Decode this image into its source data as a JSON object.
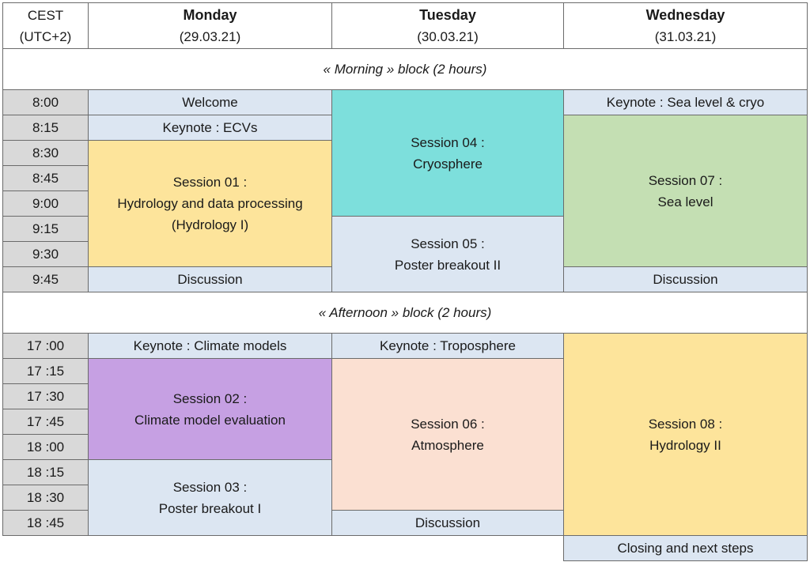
{
  "header": {
    "tz_line1": "CEST",
    "tz_line2": "(UTC+2)",
    "days": [
      {
        "name": "Monday",
        "date": "(29.03.21)"
      },
      {
        "name": "Tuesday",
        "date": "(30.03.21)"
      },
      {
        "name": "Wednesday",
        "date": "(31.03.21)"
      }
    ]
  },
  "blocks": {
    "morning": "« Morning » block (2 hours)",
    "afternoon": "« Afternoon » block (2 hours)"
  },
  "times": {
    "morning": [
      "8:00",
      "8:15",
      "8:30",
      "8:45",
      "9:00",
      "9:15",
      "9:30",
      "9:45"
    ],
    "afternoon": [
      "17 :00",
      "17 :15",
      "17 :30",
      "17 :45",
      "18 :00",
      "18 :15",
      "18 :30",
      "18 :45"
    ]
  },
  "morning": {
    "monday": {
      "welcome": "Welcome",
      "keynote": "Keynote : ECVs",
      "session": [
        "Session 01 :",
        "Hydrology and data processing",
        "(Hydrology I)"
      ],
      "discussion": "Discussion"
    },
    "tuesday": {
      "session_a": [
        "Session 04 :",
        "Cryosphere"
      ],
      "session_b": [
        "Session 05 :",
        "Poster breakout II"
      ]
    },
    "wednesday": {
      "keynote": "Keynote : Sea level & cryo",
      "session": [
        "Session 07 :",
        "Sea level"
      ],
      "discussion": "Discussion"
    }
  },
  "afternoon": {
    "monday": {
      "keynote": "Keynote : Climate models",
      "session_a": [
        "Session 02 :",
        "Climate model evaluation"
      ],
      "session_b": [
        "Session 03 :",
        "Poster breakout I"
      ]
    },
    "tuesday": {
      "keynote": "Keynote : Troposphere",
      "session": [
        "Session 06 :",
        "Atmosphere"
      ],
      "discussion": "Discussion"
    },
    "wednesday": {
      "session": [
        "Session 08 :",
        "Hydrology II"
      ],
      "closing": "Closing and next steps"
    }
  },
  "colors": {
    "time_gray": "#d9d9d9",
    "light_blue": "#dce6f2",
    "yellow": "#fde49b",
    "teal": "#7ddfdc",
    "green": "#c4dfb3",
    "purple": "#c6a0e3",
    "peach": "#fbe0d2"
  }
}
